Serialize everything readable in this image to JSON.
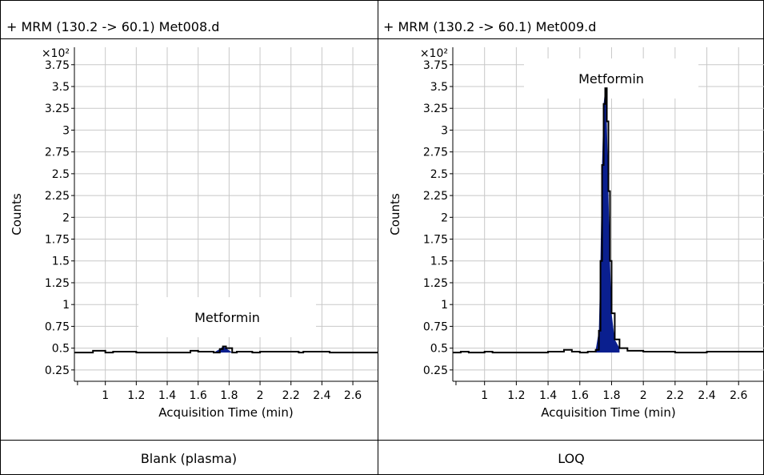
{
  "chart_data": [
    {
      "type": "line",
      "title": "+ MRM (130.2 -> 60.1) Met008.d",
      "caption": "Blank (plasma)",
      "xlabel": "Acquisition Time (min)",
      "ylabel": "Counts",
      "y_multiplier": "×10²",
      "xlim": [
        0.8,
        2.76
      ],
      "ylim": [
        0.12,
        3.95
      ],
      "x_ticks": [
        "1",
        "1.2",
        "1.4",
        "1.6",
        "1.8",
        "2",
        "2.2",
        "2.4",
        "2.6"
      ],
      "y_ticks": [
        "0.25",
        "0.5",
        "0.75",
        "1",
        "1.25",
        "1.5",
        "1.75",
        "2",
        "2.25",
        "2.5",
        "2.75",
        "3",
        "3.25",
        "3.5",
        "3.75"
      ],
      "grid": true,
      "peak_label": "Metformin",
      "peak_fill": "#0a1f8f",
      "series": [
        {
          "x": [
            0.8,
            0.9,
            0.92,
            1.0,
            1.05,
            1.2,
            1.5,
            1.55,
            1.6,
            1.7,
            1.74,
            1.76,
            1.78,
            1.82,
            1.85,
            1.95,
            2.0,
            2.25,
            2.28,
            2.45,
            2.76
          ],
          "y": [
            0.45,
            0.45,
            0.47,
            0.45,
            0.46,
            0.45,
            0.45,
            0.47,
            0.46,
            0.45,
            0.49,
            0.52,
            0.5,
            0.45,
            0.46,
            0.45,
            0.46,
            0.45,
            0.46,
            0.45,
            0.46
          ]
        }
      ]
    },
    {
      "type": "line",
      "title": "+ MRM (130.2 -> 60.1) Met009.d",
      "caption": "LOQ",
      "xlabel": "Acquisition Time (min)",
      "ylabel": "Counts",
      "y_multiplier": "×10²",
      "xlim": [
        0.8,
        2.76
      ],
      "ylim": [
        0.12,
        3.95
      ],
      "x_ticks": [
        "1",
        "1.2",
        "1.4",
        "1.6",
        "1.8",
        "2",
        "2.2",
        "2.4",
        "2.6"
      ],
      "y_ticks": [
        "0.25",
        "0.5",
        "0.75",
        "1",
        "1.25",
        "1.5",
        "1.75",
        "2",
        "2.25",
        "2.5",
        "2.75",
        "3",
        "3.25",
        "3.5",
        "3.75"
      ],
      "grid": true,
      "peak_label": "Metformin",
      "peak_fill": "#0a1f8f",
      "series": [
        {
          "x": [
            0.8,
            0.85,
            0.9,
            1.0,
            1.05,
            1.2,
            1.4,
            1.5,
            1.55,
            1.6,
            1.65,
            1.7,
            1.72,
            1.73,
            1.74,
            1.75,
            1.76,
            1.77,
            1.78,
            1.79,
            1.8,
            1.82,
            1.85,
            1.9,
            2.0,
            2.2,
            2.4,
            2.6,
            2.76
          ],
          "y": [
            0.45,
            0.46,
            0.45,
            0.46,
            0.45,
            0.45,
            0.46,
            0.48,
            0.46,
            0.45,
            0.46,
            0.48,
            0.7,
            1.5,
            2.6,
            3.3,
            3.48,
            3.1,
            2.3,
            1.5,
            0.9,
            0.6,
            0.5,
            0.47,
            0.46,
            0.45,
            0.46,
            0.46,
            0.47
          ]
        }
      ]
    }
  ]
}
